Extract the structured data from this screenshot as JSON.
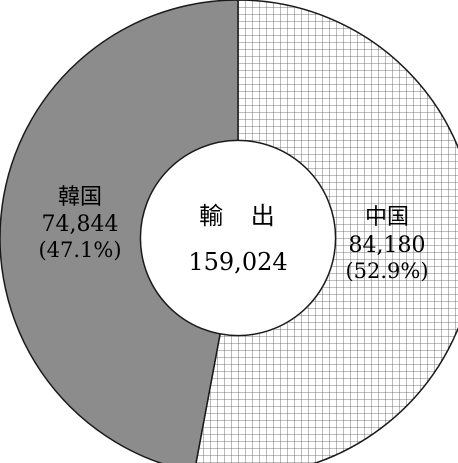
{
  "chart_data": {
    "type": "pie",
    "center_label": "輸 出",
    "center_total": "159,024",
    "slices": [
      {
        "name": "中国",
        "value": 84180,
        "value_label": "84,180",
        "percent_label": "(52.9%)",
        "fill": "grid-hatch"
      },
      {
        "name": "韓国",
        "value": 74844,
        "value_label": "74,844",
        "percent_label": "(47.1%)",
        "fill": "#8c8c8c"
      }
    ],
    "start_angle_deg": 0,
    "direction": "clockwise",
    "inner_radius_ratio": 0.41
  },
  "colors": {
    "background": "#ffffff",
    "stroke": "#1a1a1a",
    "korea_fill": "#8c8c8c",
    "hatch_line": "#555555"
  }
}
